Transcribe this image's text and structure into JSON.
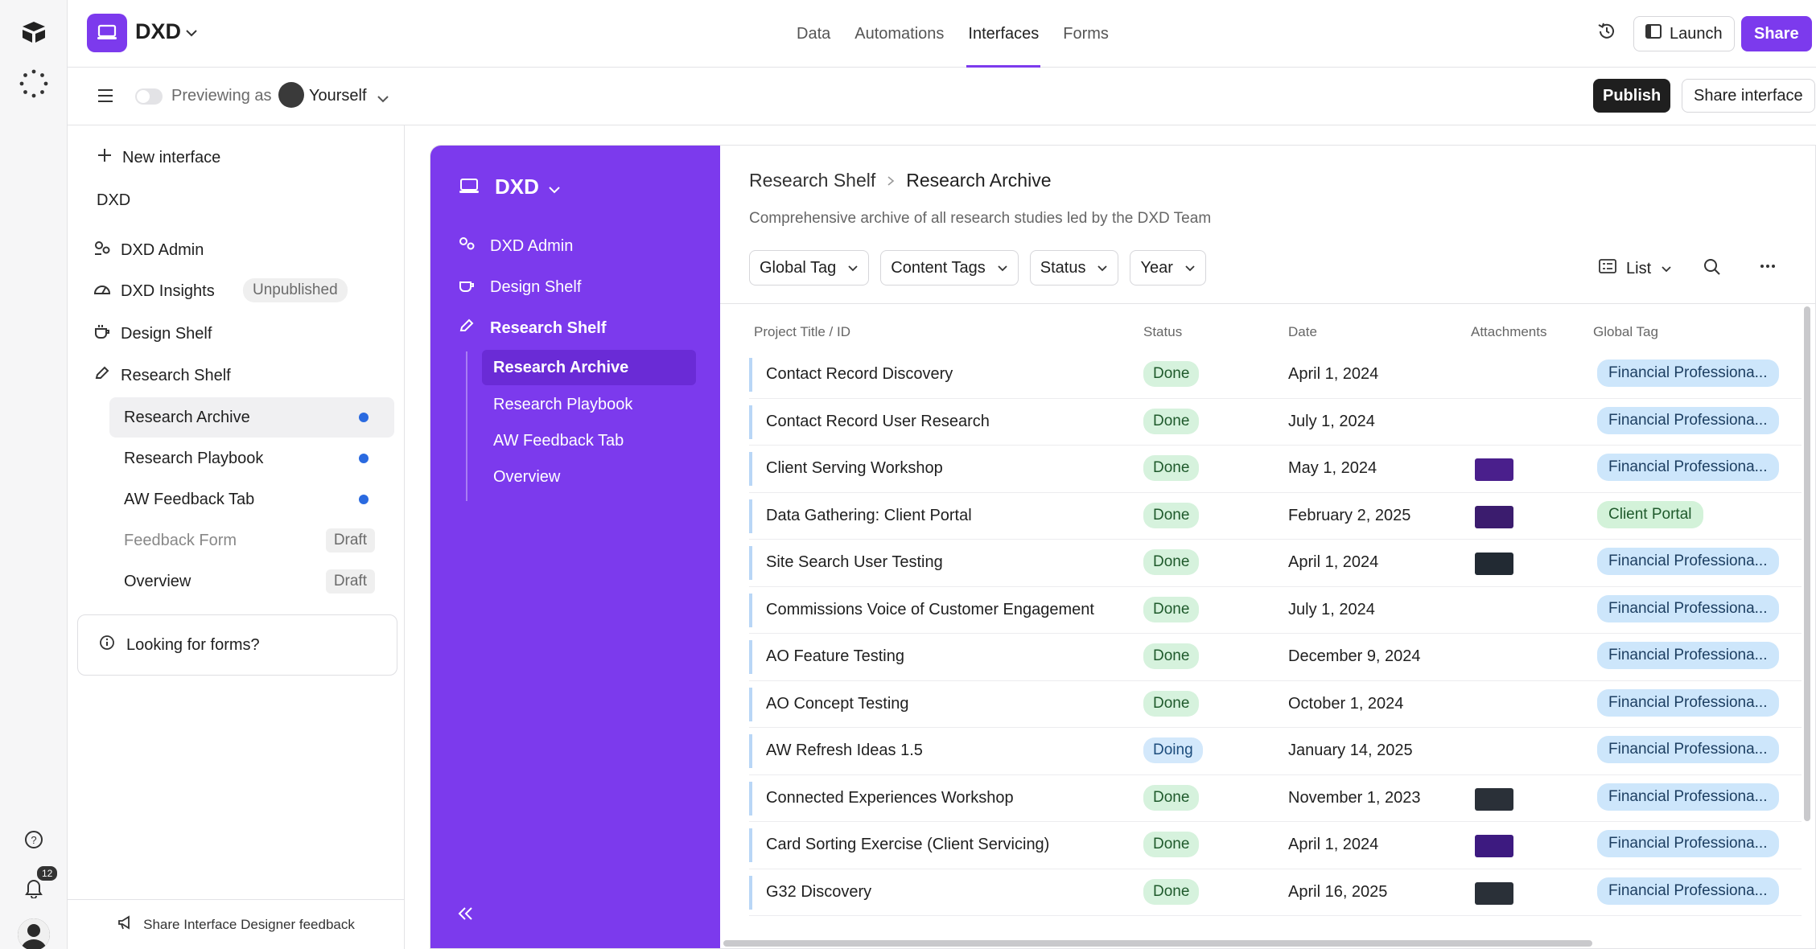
{
  "rail": {
    "notification_count": "12"
  },
  "header": {
    "app_name": "DXD",
    "tabs": [
      "Data",
      "Automations",
      "Interfaces",
      "Forms"
    ],
    "launch_label": "Launch",
    "share_label": "Share"
  },
  "subbar": {
    "previewing_label": "Previewing as",
    "user": "Yourself",
    "publish_label": "Publish",
    "share_interface_label": "Share interface"
  },
  "leftnav": {
    "new_interface": "New interface",
    "group": "DXD",
    "items": [
      {
        "label": "DXD Admin"
      },
      {
        "label": "DXD Insights",
        "badge": "Unpublished"
      },
      {
        "label": "Design Shelf"
      },
      {
        "label": "Research Shelf"
      }
    ],
    "subitems": [
      {
        "label": "Research Archive"
      },
      {
        "label": "Research Playbook"
      },
      {
        "label": "AW Feedback Tab"
      },
      {
        "label": "Feedback Form",
        "badge": "Draft"
      },
      {
        "label": "Overview",
        "badge": "Draft"
      }
    ],
    "forms_prompt": "Looking for forms?",
    "feedback": "Share Interface Designer feedback"
  },
  "preview": {
    "title": "DXD",
    "nav": [
      "DXD Admin",
      "Design Shelf",
      "Research Shelf"
    ],
    "subnav": [
      "Research Archive",
      "Research Playbook",
      "AW Feedback Tab",
      "Overview"
    ],
    "breadcrumb": [
      "Research Shelf",
      "Research Archive"
    ],
    "description": "Comprehensive archive of all research studies led by the DXD Team",
    "filters": [
      "Global Tag",
      "Content Tags",
      "Status",
      "Year"
    ],
    "view_label": "List",
    "columns": [
      "Project Title / ID",
      "Status",
      "Date",
      "Attachments",
      "Global Tag"
    ],
    "rows": [
      {
        "title": "Contact Record Discovery",
        "status": "Done",
        "date": "April 1, 2024",
        "thumb": "",
        "tag": "Financial Professiona..."
      },
      {
        "title": "Contact Record User Research",
        "status": "Done",
        "date": "July 1, 2024",
        "thumb": "",
        "tag": "Financial Professiona..."
      },
      {
        "title": "Client Serving Workshop",
        "status": "Done",
        "date": "May 1, 2024",
        "thumb": "#4a1f8c",
        "tag": "Financial Professiona..."
      },
      {
        "title": "Data Gathering: Client Portal",
        "status": "Done",
        "date": "February 2, 2025",
        "thumb": "#3b1c6e",
        "tag": "Client Portal"
      },
      {
        "title": "Site Search User Testing",
        "status": "Done",
        "date": "April 1, 2024",
        "thumb": "#222a33",
        "tag": "Financial Professiona..."
      },
      {
        "title": "Commissions Voice of Customer Engagement",
        "status": "Done",
        "date": "July 1, 2024",
        "thumb": "",
        "tag": "Financial Professiona..."
      },
      {
        "title": "AO Feature Testing",
        "status": "Done",
        "date": "December 9, 2024",
        "thumb": "",
        "tag": "Financial Professiona..."
      },
      {
        "title": "AO Concept Testing",
        "status": "Done",
        "date": "October 1, 2024",
        "thumb": "",
        "tag": "Financial Professiona..."
      },
      {
        "title": "AW Refresh Ideas 1.5",
        "status": "Doing",
        "date": "January 14, 2025",
        "thumb": "",
        "tag": "Financial Professiona..."
      },
      {
        "title": "Connected Experiences Workshop",
        "status": "Done",
        "date": "November 1, 2023",
        "thumb": "#2a3038",
        "tag": "Financial Professiona..."
      },
      {
        "title": "Card Sorting Exercise (Client Servicing)",
        "status": "Done",
        "date": "April 1, 2024",
        "thumb": "#3d1a80",
        "tag": "Financial Professiona..."
      },
      {
        "title": "G32 Discovery",
        "status": "Done",
        "date": "April 16, 2025",
        "thumb": "#2a3038",
        "tag": "Financial Professiona..."
      }
    ]
  },
  "colors": {
    "accent": "#7c3aed",
    "done_bg": "#d6f2dd",
    "doing_bg": "#d3e8fb",
    "tag_blue": "#cde6fb",
    "tag_green": "#d3f2d9"
  }
}
